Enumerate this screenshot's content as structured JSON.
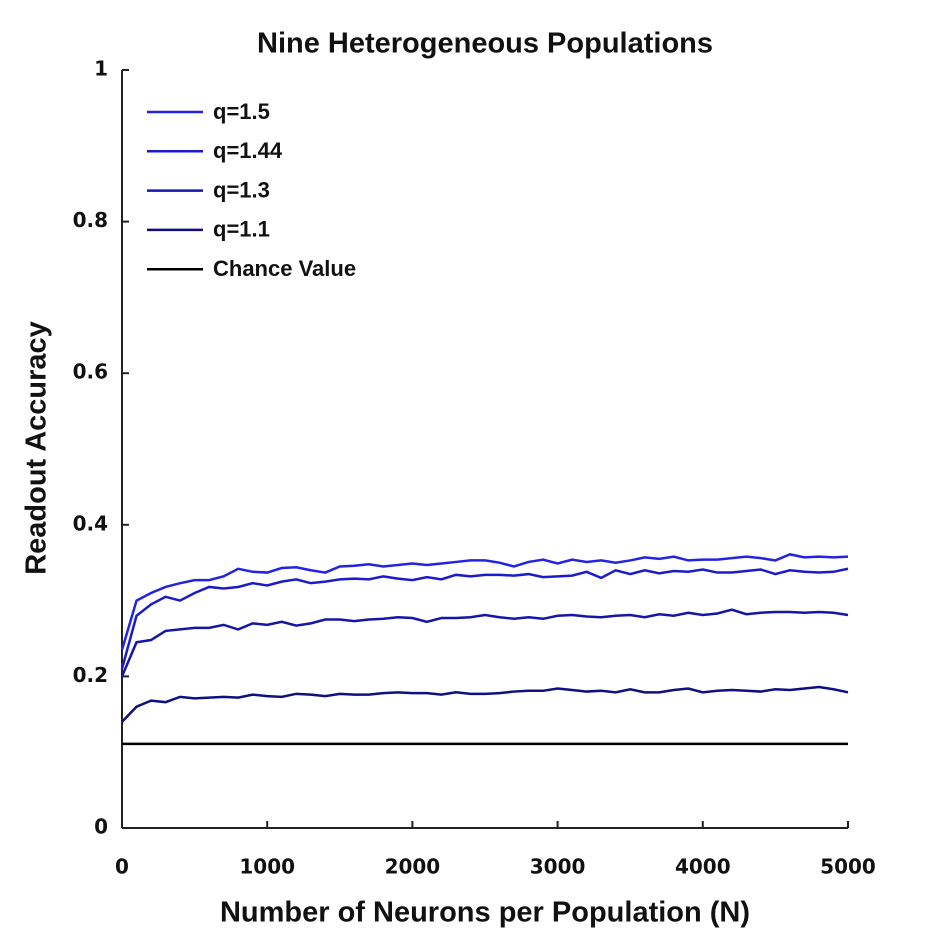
{
  "chart_data": {
    "type": "line",
    "title": "Nine Heterogeneous Populations",
    "xlabel": "Number of Neurons per Population (N)",
    "ylabel": "Readout Accuracy",
    "x": [
      0,
      100,
      200,
      300,
      400,
      500,
      600,
      700,
      800,
      900,
      1000,
      1100,
      1200,
      1300,
      1400,
      1500,
      1600,
      1700,
      1800,
      1900,
      2000,
      2100,
      2200,
      2300,
      2400,
      2500,
      2600,
      2700,
      2800,
      2900,
      3000,
      3100,
      3200,
      3300,
      3400,
      3500,
      3600,
      3700,
      3800,
      3900,
      4000,
      4100,
      4200,
      4300,
      4400,
      4500,
      4600,
      4700,
      4800,
      4900,
      5000
    ],
    "series": [
      {
        "name": "q=1.5",
        "color": "#2323e6",
        "values": [
          0.235,
          0.3,
          0.31,
          0.318,
          0.323,
          0.327,
          0.327,
          0.332,
          0.342,
          0.338,
          0.337,
          0.343,
          0.344,
          0.34,
          0.337,
          0.345,
          0.346,
          0.348,
          0.345,
          0.347,
          0.349,
          0.347,
          0.349,
          0.351,
          0.353,
          0.353,
          0.35,
          0.345,
          0.351,
          0.354,
          0.349,
          0.354,
          0.351,
          0.353,
          0.35,
          0.353,
          0.357,
          0.355,
          0.358,
          0.353,
          0.354,
          0.354,
          0.356,
          0.358,
          0.356,
          0.353,
          0.361,
          0.357,
          0.358,
          0.357,
          0.358
        ]
      },
      {
        "name": "q=1.44",
        "color": "#1b1bcc",
        "values": [
          0.21,
          0.28,
          0.295,
          0.305,
          0.3,
          0.31,
          0.318,
          0.316,
          0.318,
          0.323,
          0.32,
          0.325,
          0.328,
          0.323,
          0.325,
          0.328,
          0.329,
          0.328,
          0.332,
          0.329,
          0.327,
          0.331,
          0.328,
          0.334,
          0.332,
          0.334,
          0.334,
          0.333,
          0.335,
          0.331,
          0.332,
          0.333,
          0.338,
          0.33,
          0.34,
          0.335,
          0.34,
          0.336,
          0.339,
          0.338,
          0.341,
          0.337,
          0.337,
          0.339,
          0.341,
          0.335,
          0.34,
          0.338,
          0.337,
          0.338,
          0.342
        ]
      },
      {
        "name": "q=1.3",
        "color": "#1515aa",
        "values": [
          0.2,
          0.245,
          0.248,
          0.26,
          0.262,
          0.264,
          0.264,
          0.268,
          0.262,
          0.27,
          0.268,
          0.272,
          0.267,
          0.27,
          0.275,
          0.275,
          0.273,
          0.275,
          0.276,
          0.278,
          0.277,
          0.272,
          0.277,
          0.277,
          0.278,
          0.281,
          0.278,
          0.276,
          0.278,
          0.276,
          0.28,
          0.281,
          0.279,
          0.278,
          0.28,
          0.281,
          0.278,
          0.282,
          0.28,
          0.284,
          0.281,
          0.283,
          0.288,
          0.282,
          0.284,
          0.285,
          0.285,
          0.284,
          0.285,
          0.284,
          0.281
        ]
      },
      {
        "name": "q=1.1",
        "color": "#0f0f80",
        "values": [
          0.14,
          0.16,
          0.168,
          0.166,
          0.173,
          0.171,
          0.172,
          0.173,
          0.172,
          0.176,
          0.174,
          0.173,
          0.177,
          0.176,
          0.174,
          0.177,
          0.176,
          0.176,
          0.178,
          0.179,
          0.178,
          0.178,
          0.176,
          0.179,
          0.177,
          0.177,
          0.178,
          0.18,
          0.181,
          0.181,
          0.184,
          0.182,
          0.18,
          0.181,
          0.179,
          0.183,
          0.179,
          0.179,
          0.182,
          0.184,
          0.179,
          0.181,
          0.182,
          0.181,
          0.18,
          0.183,
          0.182,
          0.184,
          0.186,
          0.183,
          0.179
        ]
      }
    ],
    "reference_line": {
      "name": "Chance Value",
      "color": "#000000",
      "value": 0.111
    },
    "xlim": [
      0,
      5000
    ],
    "xticks": [
      0,
      1000,
      2000,
      3000,
      4000,
      5000
    ],
    "ylim": [
      0,
      1
    ],
    "yticks": [
      0,
      0.2,
      0.4,
      0.6,
      0.8,
      1
    ],
    "legend": "upper left",
    "grid": false
  }
}
